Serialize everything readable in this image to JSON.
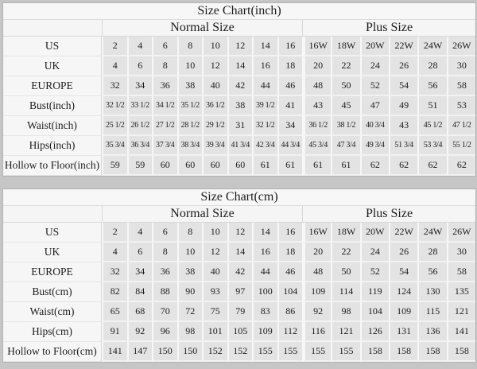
{
  "page": {
    "background_color": "#c6c6c6",
    "table_background_color": "#f6f6f6",
    "data_cell_color": "#e3e3e3",
    "text_color": "#1c1c1c"
  },
  "chart_data": [
    {
      "type": "table",
      "title": "Size Chart(inch)",
      "column_groups": [
        {
          "label": "Normal Size",
          "columns": 8
        },
        {
          "label": "Plus Size",
          "columns": 6
        }
      ],
      "rows": [
        {
          "label": "US",
          "values": [
            "2",
            "4",
            "6",
            "8",
            "10",
            "12",
            "14",
            "16",
            "16W",
            "18W",
            "20W",
            "22W",
            "24W",
            "26W"
          ]
        },
        {
          "label": "UK",
          "values": [
            "4",
            "6",
            "8",
            "10",
            "12",
            "14",
            "16",
            "18",
            "20",
            "22",
            "24",
            "26",
            "28",
            "30"
          ]
        },
        {
          "label": "EUROPE",
          "values": [
            "32",
            "34",
            "36",
            "38",
            "40",
            "42",
            "44",
            "46",
            "48",
            "50",
            "52",
            "54",
            "56",
            "58"
          ]
        },
        {
          "label": "Bust(inch)",
          "values": [
            "32 1/2",
            "33 1/2",
            "34 1/2",
            "35 1/2",
            "36 1/2",
            "38",
            "39 1/2",
            "41",
            "43",
            "45",
            "47",
            "49",
            "51",
            "53"
          ]
        },
        {
          "label": "Waist(inch)",
          "values": [
            "25 1/2",
            "26 1/2",
            "27 1/2",
            "28 1/2",
            "29 1/2",
            "31",
            "32 1/2",
            "34",
            "36 1/2",
            "38 1/2",
            "40 3/4",
            "43",
            "45 1/2",
            "47 1/2"
          ]
        },
        {
          "label": "Hips(inch)",
          "values": [
            "35 3/4",
            "36 3/4",
            "37 3/4",
            "38 3/4",
            "39 3/4",
            "41 3/4",
            "42 3/4",
            "44 3/4",
            "45 3/4",
            "47 3/4",
            "49 3/4",
            "51 3/4",
            "53 3/4",
            "55 1/2"
          ]
        },
        {
          "label": "Hollow to Floor(inch)",
          "values": [
            "59",
            "59",
            "60",
            "60",
            "60",
            "60",
            "61",
            "61",
            "61",
            "61",
            "62",
            "62",
            "62",
            "62"
          ]
        }
      ]
    },
    {
      "type": "table",
      "title": "Size Chart(cm)",
      "column_groups": [
        {
          "label": "Normal Size",
          "columns": 8
        },
        {
          "label": "Plus Size",
          "columns": 6
        }
      ],
      "rows": [
        {
          "label": "US",
          "values": [
            "2",
            "4",
            "6",
            "8",
            "10",
            "12",
            "14",
            "16",
            "16W",
            "18W",
            "20W",
            "22W",
            "24W",
            "26W"
          ]
        },
        {
          "label": "UK",
          "values": [
            "4",
            "6",
            "8",
            "10",
            "12",
            "14",
            "16",
            "18",
            "20",
            "22",
            "24",
            "26",
            "28",
            "30"
          ]
        },
        {
          "label": "EUROPE",
          "values": [
            "32",
            "34",
            "36",
            "38",
            "40",
            "42",
            "44",
            "46",
            "48",
            "50",
            "52",
            "54",
            "56",
            "58"
          ]
        },
        {
          "label": "Bust(cm)",
          "values": [
            "82",
            "84",
            "88",
            "90",
            "93",
            "97",
            "100",
            "104",
            "109",
            "114",
            "119",
            "124",
            "130",
            "135"
          ]
        },
        {
          "label": "Waist(cm)",
          "values": [
            "65",
            "68",
            "70",
            "72",
            "75",
            "79",
            "83",
            "86",
            "92",
            "98",
            "104",
            "109",
            "115",
            "121"
          ]
        },
        {
          "label": "Hips(cm)",
          "values": [
            "91",
            "92",
            "96",
            "98",
            "101",
            "105",
            "109",
            "112",
            "116",
            "121",
            "126",
            "131",
            "136",
            "141"
          ]
        },
        {
          "label": "Hollow to Floor(cm)",
          "values": [
            "141",
            "147",
            "150",
            "150",
            "152",
            "152",
            "155",
            "155",
            "155",
            "155",
            "158",
            "158",
            "158",
            "158"
          ]
        }
      ]
    }
  ]
}
